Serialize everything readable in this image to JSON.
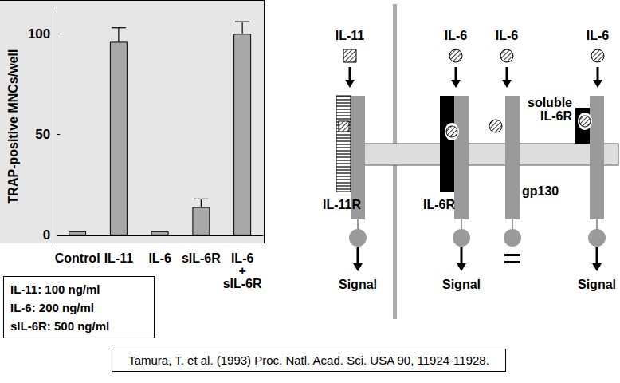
{
  "chart_data": {
    "type": "bar",
    "categories": [
      "Control",
      "IL-11",
      "IL-6",
      "sIL-6R",
      "IL-6\n+\nsIL-6R"
    ],
    "values": [
      2,
      96,
      2,
      14,
      100
    ],
    "errors": [
      null,
      7,
      null,
      4,
      6
    ],
    "color": "#a8a8a8",
    "ylim": [
      -4,
      112
    ],
    "yticks": [
      0,
      50,
      100
    ],
    "y_label": "TRAP-positive MNCs/well",
    "annotations": [
      "IL-11: 100 ng/ml",
      "IL-6: 200 ng/ml",
      "sIL-6R: 500 ng/ml"
    ],
    "grid": false
  },
  "diagram": {
    "panels": [
      {
        "ligand": "IL-11",
        "receptor": "IL-11R",
        "output": "Signal"
      },
      {
        "ligand": "IL-6",
        "receptor": "IL-6R",
        "output": "Signal"
      },
      {
        "ligand": "IL-6",
        "receptor": "gp130"
      },
      {
        "ligand": "IL-6",
        "receptor": "soluble\nIL-6R",
        "output": "Signal"
      }
    ]
  },
  "citation": "Tamura, T. et al. (1993) Proc. Natl. Acad. Sci. USA 90, 11924-11928."
}
